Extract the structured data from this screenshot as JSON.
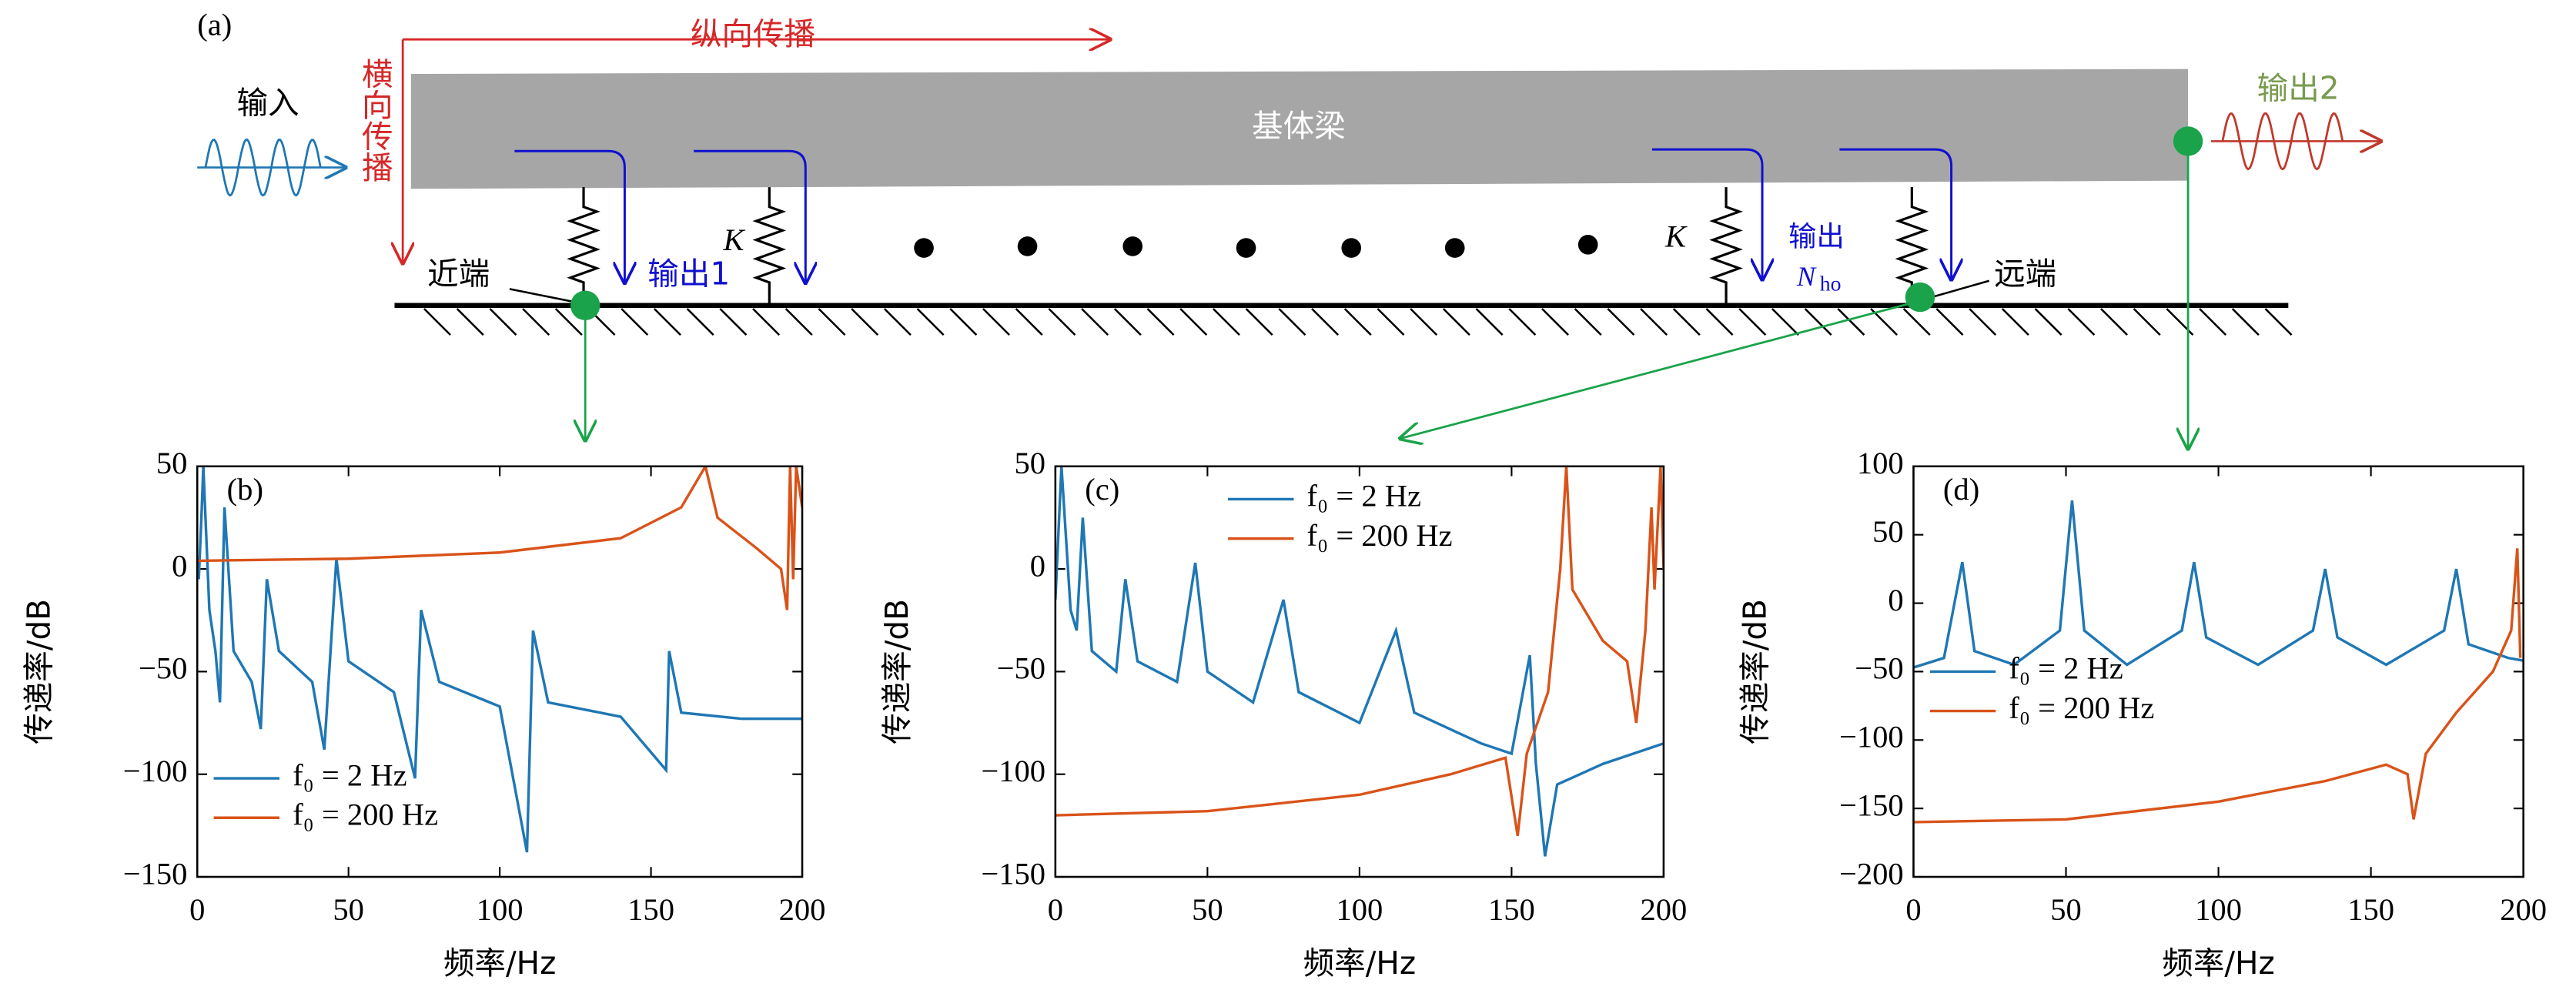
{
  "diagram": {
    "label": "(a)",
    "longitudinal": "纵向传播",
    "transverse": "横向传播",
    "input": "输入",
    "beam": "基体梁",
    "output2": "输出2",
    "stiffness_left": "K",
    "stiffness_right": "K",
    "near_end": "近端",
    "output1": "输出1",
    "output_n": "输出",
    "output_n_symbol": "N",
    "output_n_sub": "ho",
    "far_end": "远端"
  },
  "chart_data": [
    {
      "type": "line",
      "panel": "(b)",
      "xlabel": "频率/Hz",
      "ylabel": "传递率/dB",
      "xlim": [
        0,
        200
      ],
      "ylim": [
        -150,
        50
      ],
      "xticks": [
        0,
        50,
        100,
        150,
        200
      ],
      "yticks": [
        {
          "value": -150,
          "label": "−150"
        },
        {
          "value": -100,
          "label": "−100"
        },
        {
          "value": -50,
          "label": "−50"
        },
        0,
        50
      ],
      "legend": "lower left",
      "series": [
        {
          "name": "f₀ = 2 Hz",
          "color": "#1f77b4",
          "x": [
            0.5,
            1.5,
            2,
            4,
            6,
            7.5,
            9,
            12,
            18,
            21,
            23,
            27,
            38,
            42,
            46,
            50,
            65,
            72,
            74,
            80,
            100,
            109,
            111,
            116,
            140,
            155,
            156,
            160,
            180,
            200
          ],
          "values": [
            -5,
            30,
            50,
            -20,
            -40,
            -65,
            30,
            -40,
            -55,
            -78,
            -5,
            -40,
            -55,
            -88,
            5,
            -45,
            -60,
            -102,
            -20,
            -55,
            -67,
            -138,
            -30,
            -65,
            -72,
            -98,
            -40,
            -70,
            -73,
            -73
          ]
        },
        {
          "name": "f₀ = 200 Hz",
          "color": "#d95319",
          "x": [
            0,
            50,
            100,
            140,
            160,
            168,
            172,
            185,
            193,
            195,
            196,
            197,
            198,
            200
          ],
          "values": [
            4,
            5,
            8,
            15,
            30,
            50,
            25,
            10,
            0,
            -20,
            50,
            -5,
            50,
            30
          ]
        }
      ]
    },
    {
      "type": "line",
      "panel": "(c)",
      "xlabel": "频率/Hz",
      "ylabel": "传递率/dB",
      "xlim": [
        0,
        200
      ],
      "ylim": [
        -150,
        50
      ],
      "xticks": [
        0,
        50,
        100,
        150,
        200
      ],
      "yticks": [
        {
          "value": -150,
          "label": "−150"
        },
        {
          "value": -100,
          "label": "−100"
        },
        {
          "value": -50,
          "label": "−50"
        },
        0,
        50
      ],
      "legend": "upper center",
      "series": [
        {
          "name": "f₀ = 2 Hz",
          "color": "#1f77b4",
          "x": [
            0,
            2,
            5,
            7,
            9,
            12,
            20,
            23,
            27,
            40,
            46,
            50,
            65,
            75,
            80,
            100,
            112,
            118,
            140,
            150,
            156,
            158,
            161,
            165,
            180,
            200
          ],
          "values": [
            -15,
            50,
            -20,
            -30,
            25,
            -40,
            -50,
            -5,
            -45,
            -55,
            3,
            -50,
            -65,
            -15,
            -60,
            -75,
            -30,
            -70,
            -85,
            -90,
            -42,
            -95,
            -140,
            -105,
            -95,
            -85
          ]
        },
        {
          "name": "f₀ = 200 Hz",
          "color": "#d95319",
          "x": [
            0,
            50,
            100,
            130,
            148,
            152,
            155,
            162,
            166,
            168,
            170,
            180,
            188,
            191,
            194,
            196,
            197,
            199,
            200
          ],
          "values": [
            -120,
            -118,
            -110,
            -100,
            -92,
            -130,
            -90,
            -60,
            0,
            50,
            -10,
            -35,
            -45,
            -75,
            -30,
            30,
            -10,
            50,
            0
          ]
        }
      ]
    },
    {
      "type": "line",
      "panel": "(d)",
      "xlabel": "频率/Hz",
      "ylabel": "传递率/dB",
      "xlim": [
        0,
        200
      ],
      "ylim": [
        -200,
        100
      ],
      "xticks": [
        0,
        50,
        100,
        150,
        200
      ],
      "yticks": [
        {
          "value": -200,
          "label": "−200"
        },
        {
          "value": -150,
          "label": "−150"
        },
        {
          "value": -100,
          "label": "−100"
        },
        {
          "value": -50,
          "label": "−50"
        },
        0,
        50,
        100
      ],
      "legend": "center left",
      "series": [
        {
          "name": "f₀ = 2 Hz",
          "color": "#1f77b4",
          "x": [
            0,
            10,
            16,
            20,
            33,
            48,
            52,
            56,
            70,
            88,
            92,
            96,
            113,
            131,
            135,
            139,
            155,
            174,
            178,
            182,
            195,
            200
          ],
          "values": [
            -47,
            -40,
            30,
            -35,
            -45,
            -20,
            75,
            -20,
            -45,
            -20,
            30,
            -25,
            -45,
            -20,
            25,
            -25,
            -45,
            -20,
            25,
            -30,
            -40,
            -42
          ]
        },
        {
          "name": "f₀ = 200 Hz",
          "color": "#d95319",
          "x": [
            0,
            50,
            100,
            135,
            155,
            162,
            164,
            168,
            178,
            190,
            196,
            198,
            199
          ],
          "values": [
            -160,
            -158,
            -145,
            -130,
            -118,
            -125,
            -158,
            -110,
            -80,
            -50,
            -20,
            40,
            -40
          ]
        }
      ]
    }
  ]
}
